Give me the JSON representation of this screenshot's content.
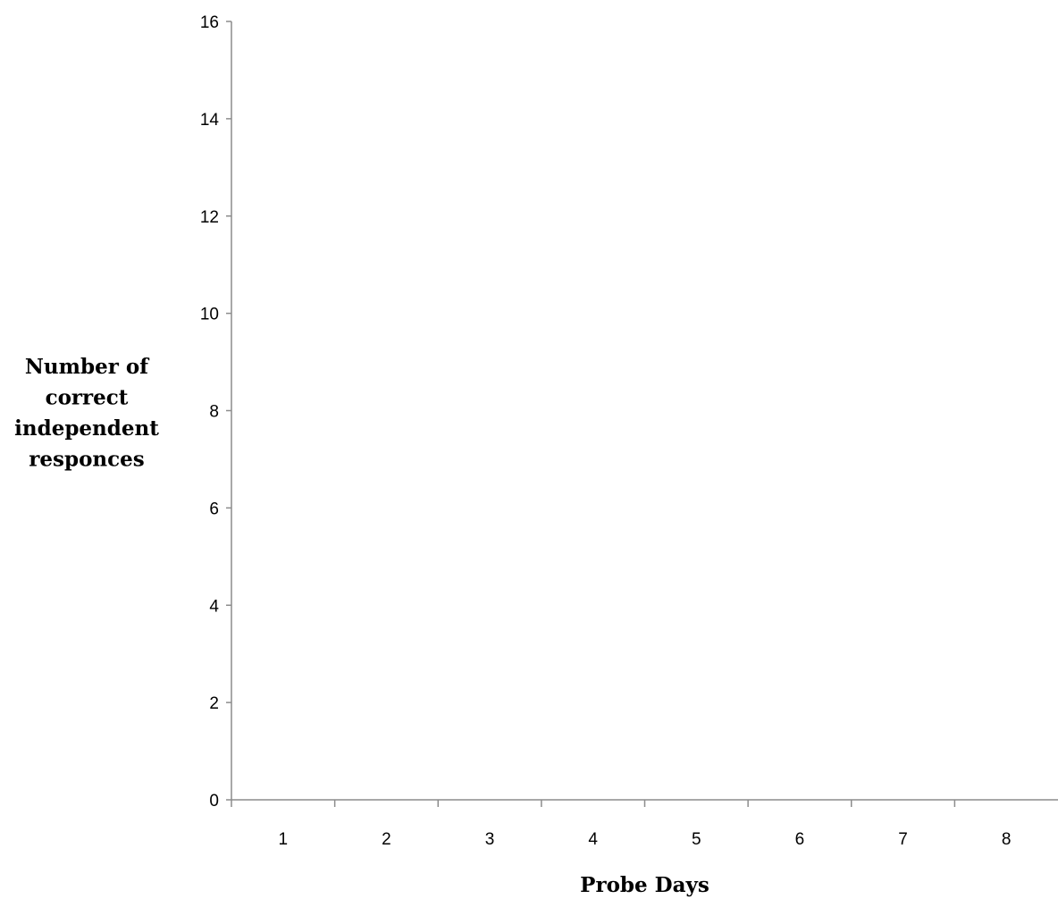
{
  "chart_data": {
    "type": "line",
    "title": "",
    "xlabel": "Probe Days",
    "ylabel": [
      "Number of",
      "correct",
      "independent",
      "responces"
    ],
    "categories": [
      "1",
      "2",
      "3",
      "4",
      "5",
      "6",
      "7",
      "8"
    ],
    "series": [],
    "ylim": [
      0,
      16
    ],
    "yticks": [
      0,
      2,
      4,
      6,
      8,
      10,
      12,
      14,
      16
    ],
    "grid": false,
    "legend": "none",
    "axis_color": "#8c8c8c"
  }
}
